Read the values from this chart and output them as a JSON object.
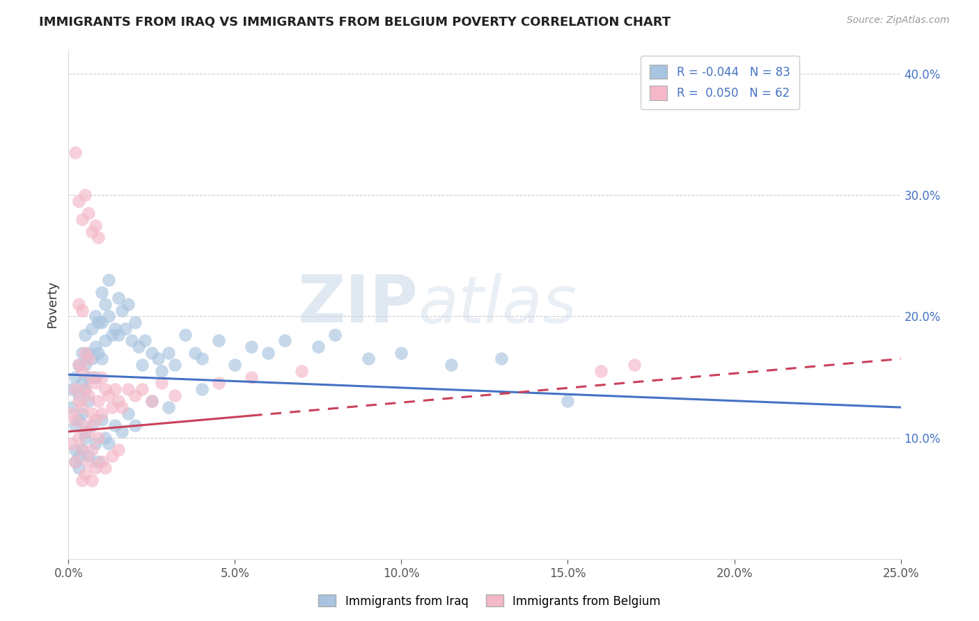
{
  "title": "IMMIGRANTS FROM IRAQ VS IMMIGRANTS FROM BELGIUM POVERTY CORRELATION CHART",
  "source": "Source: ZipAtlas.com",
  "ylabel": "Poverty",
  "xlim": [
    0.0,
    25.0
  ],
  "ylim": [
    0.0,
    42.0
  ],
  "yticks": [
    10.0,
    20.0,
    30.0,
    40.0
  ],
  "xticks": [
    0.0,
    5.0,
    10.0,
    15.0,
    20.0,
    25.0
  ],
  "iraq_color": "#a8c4e0",
  "iraq_color_line": "#4472c4",
  "belgium_color": "#f4b8c8",
  "belgium_color_line": "#c9415a",
  "iraq_R": -0.044,
  "iraq_N": 83,
  "belgium_R": 0.05,
  "belgium_N": 62,
  "legend_iraq_label": "Immigrants from Iraq",
  "legend_belgium_label": "Immigrants from Belgium",
  "watermark_zip": "ZIP",
  "watermark_atlas": "atlas",
  "iraq_scatter_x": [
    0.1,
    0.1,
    0.2,
    0.2,
    0.2,
    0.3,
    0.3,
    0.3,
    0.3,
    0.4,
    0.4,
    0.4,
    0.5,
    0.5,
    0.5,
    0.5,
    0.6,
    0.6,
    0.6,
    0.7,
    0.7,
    0.8,
    0.8,
    0.8,
    0.9,
    0.9,
    1.0,
    1.0,
    1.0,
    1.1,
    1.1,
    1.2,
    1.2,
    1.3,
    1.4,
    1.5,
    1.5,
    1.6,
    1.7,
    1.8,
    1.9,
    2.0,
    2.1,
    2.2,
    2.3,
    2.5,
    2.7,
    2.8,
    3.0,
    3.2,
    3.5,
    3.8,
    4.0,
    4.5,
    5.0,
    5.5,
    6.0,
    6.5,
    7.5,
    8.0,
    9.0,
    10.0,
    11.5,
    13.0,
    15.0,
    0.2,
    0.3,
    0.4,
    0.5,
    0.6,
    0.7,
    0.8,
    0.9,
    1.0,
    1.1,
    1.2,
    1.4,
    1.6,
    1.8,
    2.0,
    2.5,
    3.0,
    4.0
  ],
  "iraq_scatter_y": [
    14.0,
    12.5,
    15.0,
    11.0,
    9.0,
    16.0,
    13.5,
    11.5,
    8.5,
    17.0,
    14.5,
    12.0,
    18.5,
    16.0,
    14.0,
    10.5,
    17.0,
    15.0,
    13.0,
    19.0,
    16.5,
    20.0,
    17.5,
    15.0,
    19.5,
    17.0,
    22.0,
    19.5,
    16.5,
    21.0,
    18.0,
    23.0,
    20.0,
    18.5,
    19.0,
    21.5,
    18.5,
    20.5,
    19.0,
    21.0,
    18.0,
    19.5,
    17.5,
    16.0,
    18.0,
    17.0,
    16.5,
    15.5,
    17.0,
    16.0,
    18.5,
    17.0,
    16.5,
    18.0,
    16.0,
    17.5,
    17.0,
    18.0,
    17.5,
    18.5,
    16.5,
    17.0,
    16.0,
    16.5,
    13.0,
    8.0,
    7.5,
    9.0,
    10.0,
    8.5,
    11.0,
    9.5,
    8.0,
    11.5,
    10.0,
    9.5,
    11.0,
    10.5,
    12.0,
    11.0,
    13.0,
    12.5,
    14.0
  ],
  "belgium_scatter_x": [
    0.1,
    0.1,
    0.2,
    0.2,
    0.2,
    0.3,
    0.3,
    0.3,
    0.4,
    0.4,
    0.4,
    0.5,
    0.5,
    0.5,
    0.6,
    0.6,
    0.6,
    0.7,
    0.7,
    0.7,
    0.8,
    0.8,
    0.9,
    0.9,
    1.0,
    1.0,
    1.1,
    1.2,
    1.3,
    1.4,
    1.5,
    1.6,
    1.8,
    2.0,
    2.2,
    2.5,
    2.8,
    3.2,
    0.2,
    0.3,
    0.4,
    0.5,
    0.6,
    0.7,
    0.8,
    0.9,
    1.0,
    1.1,
    1.3,
    1.5,
    0.4,
    0.5,
    0.6,
    0.7,
    0.8,
    4.5,
    5.5,
    7.0,
    16.0,
    17.0,
    0.3,
    0.4
  ],
  "belgium_scatter_y": [
    12.0,
    9.5,
    14.0,
    11.5,
    8.0,
    16.0,
    13.0,
    10.0,
    15.5,
    12.5,
    9.0,
    17.0,
    14.0,
    11.0,
    16.5,
    13.5,
    10.5,
    15.0,
    12.0,
    9.0,
    14.5,
    11.5,
    13.0,
    10.0,
    15.0,
    12.0,
    14.0,
    13.5,
    12.5,
    14.0,
    13.0,
    12.5,
    14.0,
    13.5,
    14.0,
    13.0,
    14.5,
    13.5,
    33.5,
    29.5,
    28.0,
    30.0,
    28.5,
    27.0,
    27.5,
    26.5,
    8.0,
    7.5,
    8.5,
    9.0,
    6.5,
    7.0,
    8.0,
    6.5,
    7.5,
    14.5,
    15.0,
    15.5,
    15.5,
    16.0,
    21.0,
    20.5
  ],
  "iraq_trend_start": 15.2,
  "iraq_trend_end": 12.5,
  "belgium_trend_start": 10.5,
  "belgium_trend_end": 16.5
}
